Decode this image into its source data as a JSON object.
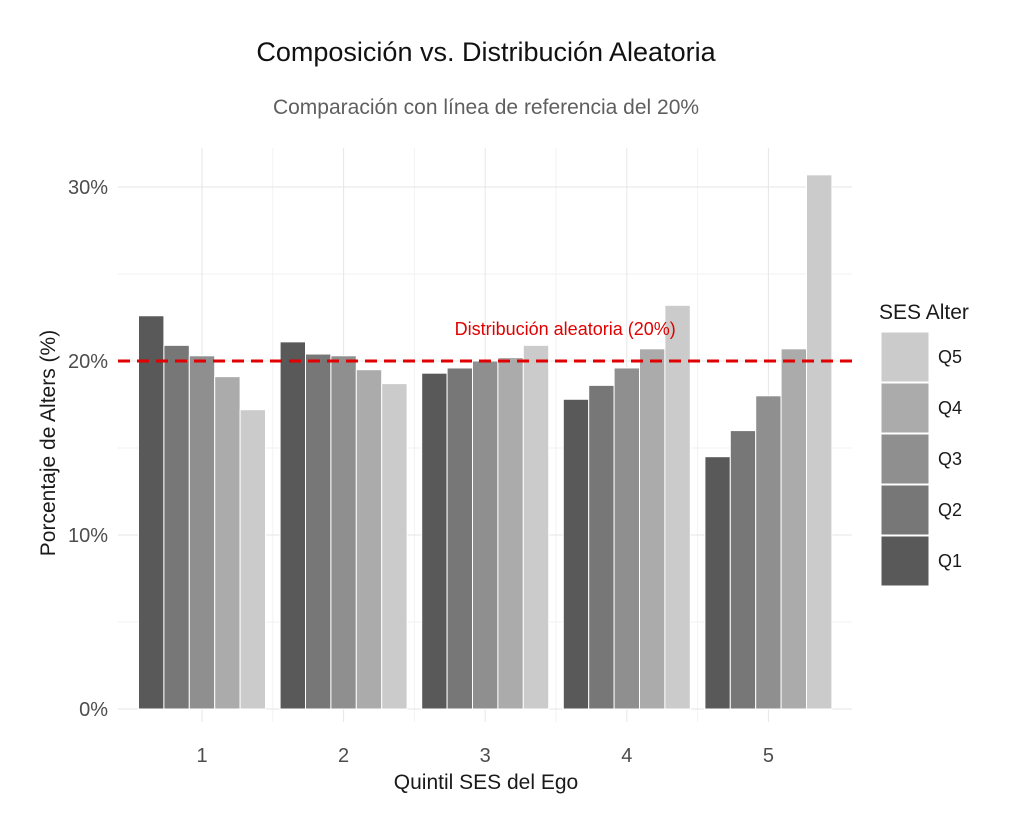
{
  "chart_data": {
    "type": "bar",
    "title": "Composición vs. Distribución Aleatoria",
    "subtitle": "Comparación con línea de referencia del 20%",
    "xlabel": "Quintil SES del Ego",
    "ylabel": "Porcentaje de Alters (%)",
    "categories": [
      "1",
      "2",
      "3",
      "4",
      "5"
    ],
    "ylim": [
      0,
      32
    ],
    "yticks": [
      0,
      10,
      20,
      30
    ],
    "ytick_labels": [
      "0%",
      "10%",
      "20%",
      "30%"
    ],
    "grid": true,
    "legend": {
      "title": "SES Alter",
      "position": "right",
      "order": [
        "Q5",
        "Q4",
        "Q3",
        "Q2",
        "Q1"
      ]
    },
    "series": [
      {
        "name": "Q1",
        "color": "#595959",
        "values": [
          22.6,
          21.1,
          19.3,
          17.8,
          14.5
        ]
      },
      {
        "name": "Q2",
        "color": "#777777",
        "values": [
          20.9,
          20.4,
          19.6,
          18.6,
          16.0
        ]
      },
      {
        "name": "Q3",
        "color": "#8f8f8f",
        "values": [
          20.3,
          20.3,
          20.0,
          19.6,
          18.0
        ]
      },
      {
        "name": "Q4",
        "color": "#ababab",
        "values": [
          19.1,
          19.5,
          20.2,
          20.7,
          20.7
        ]
      },
      {
        "name": "Q5",
        "color": "#cbcbcb",
        "values": [
          17.2,
          18.7,
          20.9,
          23.2,
          30.7
        ]
      }
    ],
    "reference_line": {
      "value": 20,
      "label": "Distribución aleatoria (20%)",
      "color": "#e00000",
      "style": "dashed",
      "label_category": "3"
    }
  }
}
